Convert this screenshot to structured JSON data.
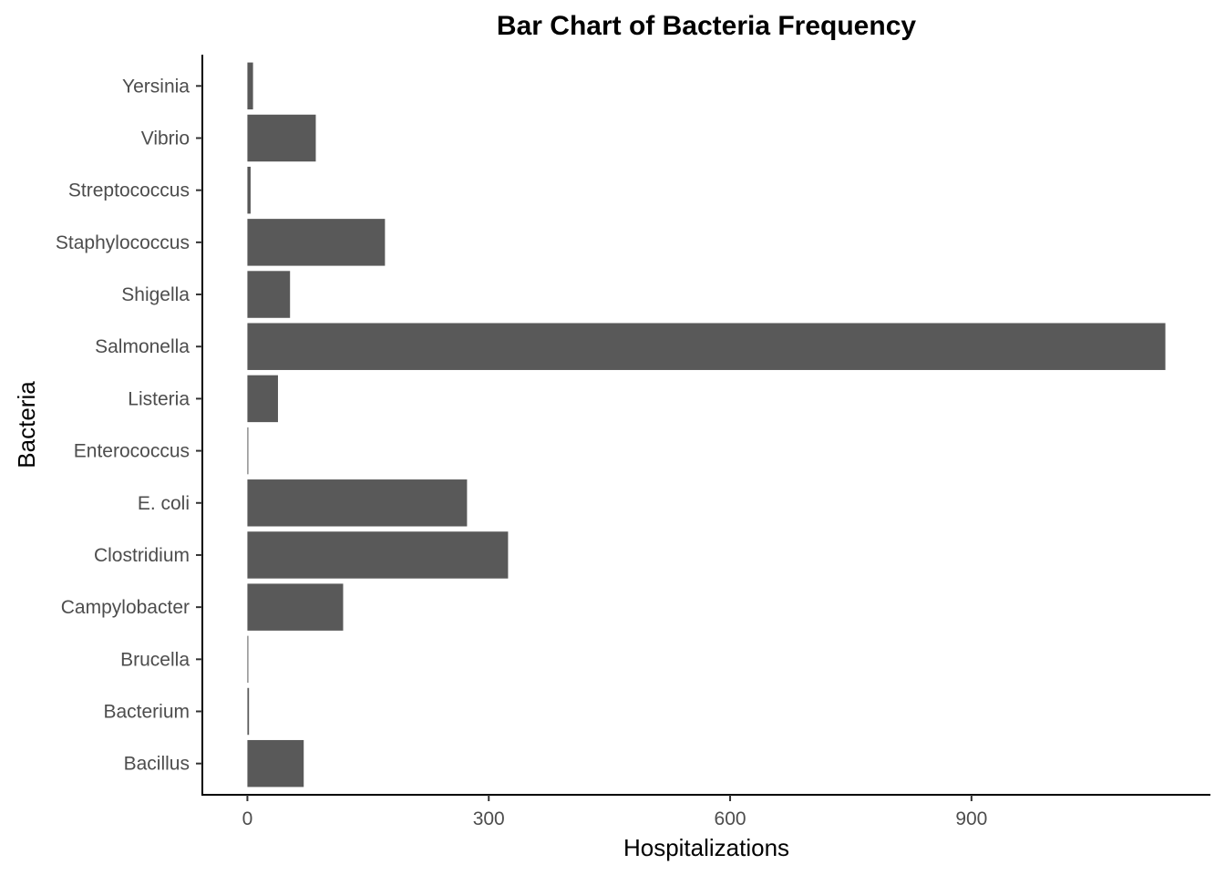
{
  "chart_data": {
    "type": "bar",
    "orientation": "horizontal",
    "title": "Bar Chart of Bacteria Frequency",
    "xlabel": "Hospitalizations",
    "ylabel": "Bacteria",
    "categories": [
      "Bacillus",
      "Bacterium",
      "Brucella",
      "Campylobacter",
      "Clostridium",
      "E. coli",
      "Enterococcus",
      "Listeria",
      "Salmonella",
      "Shigella",
      "Staphylococcus",
      "Streptococcus",
      "Vibrio",
      "Yersinia"
    ],
    "values": [
      70,
      2,
      1,
      119,
      324,
      273,
      1,
      38,
      1141,
      53,
      171,
      4,
      85,
      7
    ],
    "xticks": [
      0,
      300,
      600,
      900
    ],
    "xlim": [
      -56,
      1197
    ],
    "grid": false,
    "legend": "none",
    "bar_color": "#595959"
  }
}
